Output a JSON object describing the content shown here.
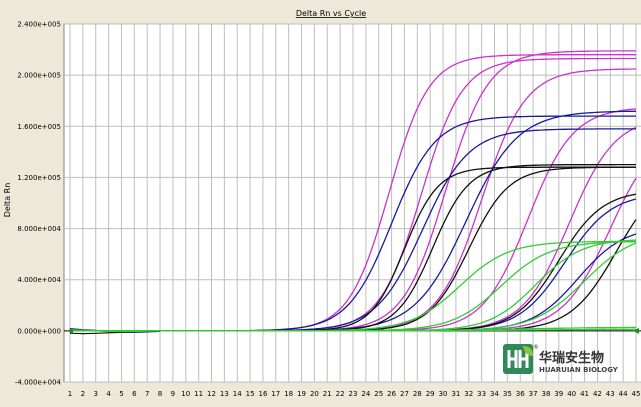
{
  "chart_data": {
    "type": "line",
    "title": "Delta Rn vs Cycle",
    "xlabel": "",
    "ylabel": "Delta Rn",
    "x": [
      1,
      2,
      3,
      4,
      5,
      6,
      7,
      8,
      9,
      10,
      11,
      12,
      13,
      14,
      15,
      16,
      17,
      18,
      19,
      20,
      21,
      22,
      23,
      24,
      25,
      26,
      27,
      28,
      29,
      30,
      31,
      32,
      33,
      34,
      35,
      36,
      37,
      38,
      39,
      40,
      41,
      42,
      43,
      44,
      45
    ],
    "xlim": [
      1,
      45
    ],
    "ylim": [
      -40000,
      240000
    ],
    "yticks": [
      -40000,
      0,
      40000,
      80000,
      120000,
      160000,
      200000,
      240000
    ],
    "ytick_labels": [
      "-4.000e+004",
      "0.000e+000",
      "4.000e+004",
      "8.000e+004",
      "1.200e+005",
      "1.600e+005",
      "2.000e+005",
      "2.400e+005"
    ],
    "grid": true,
    "legend": "none",
    "colors": {
      "magenta": "#CC33CC",
      "blue": "#1A1A99",
      "black": "#111111",
      "green": "#33CC33",
      "background": "#ECE9D8",
      "plot": "#FFFFFF",
      "grid": "#BEBEBE"
    },
    "series_params": [
      {
        "color": "magenta",
        "plateau": 216000,
        "midpoint": 25.8,
        "slope": 1.55
      },
      {
        "color": "magenta",
        "plateau": 213000,
        "midpoint": 28.3,
        "slope": 1.6
      },
      {
        "color": "magenta",
        "plateau": 219000,
        "midpoint": 30.2,
        "slope": 1.65
      },
      {
        "color": "magenta",
        "plateau": 205000,
        "midpoint": 33.0,
        "slope": 1.7
      },
      {
        "color": "magenta",
        "plateau": 175000,
        "midpoint": 36.6,
        "slope": 1.75
      },
      {
        "color": "magenta",
        "plateau": 168000,
        "midpoint": 39.8,
        "slope": 1.8
      },
      {
        "color": "magenta",
        "plateau": 160000,
        "midpoint": 43.0,
        "slope": 1.85
      },
      {
        "color": "blue",
        "plateau": 168000,
        "midpoint": 26.0,
        "slope": 1.7
      },
      {
        "color": "blue",
        "plateau": 158000,
        "midpoint": 28.4,
        "slope": 1.8
      },
      {
        "color": "blue",
        "plateau": 172000,
        "midpoint": 31.8,
        "slope": 2.0
      },
      {
        "color": "blue",
        "plateau": 108000,
        "midpoint": 39.5,
        "slope": 1.8
      },
      {
        "color": "blue",
        "plateau": 82000,
        "midpoint": 40.5,
        "slope": 1.8
      },
      {
        "color": "black",
        "plateau": 128000,
        "midpoint": 27.0,
        "slope": 1.3
      },
      {
        "color": "black",
        "plateau": 130000,
        "midpoint": 29.2,
        "slope": 1.4
      },
      {
        "color": "black",
        "plateau": 128000,
        "midpoint": 32.0,
        "slope": 1.55
      },
      {
        "color": "black",
        "plateau": 110000,
        "midpoint": 39.0,
        "slope": 1.7
      },
      {
        "color": "black",
        "plateau": 125000,
        "midpoint": 43.5,
        "slope": 1.8
      },
      {
        "color": "green",
        "plateau": 70000,
        "midpoint": 31.3,
        "slope": 1.9
      },
      {
        "color": "green",
        "plateau": 70000,
        "midpoint": 34.5,
        "slope": 1.9
      },
      {
        "color": "green",
        "plateau": 72000,
        "midpoint": 37.2,
        "slope": 1.8
      },
      {
        "color": "green",
        "plateau": 78000,
        "midpoint": 41.0,
        "slope": 2.0
      },
      {
        "color": "green",
        "plateau": 3000,
        "midpoint": 36.0,
        "slope": 4.0
      },
      {
        "color": "green",
        "plateau": 1500,
        "midpoint": 38.0,
        "slope": 4.0
      }
    ]
  },
  "logo": {
    "cn": "华瑞安生物",
    "en": "HUARUIAN BIOLOGY",
    "registered": "®",
    "colors": {
      "primary": "#2E8B57",
      "light": "#8CC63F"
    }
  }
}
